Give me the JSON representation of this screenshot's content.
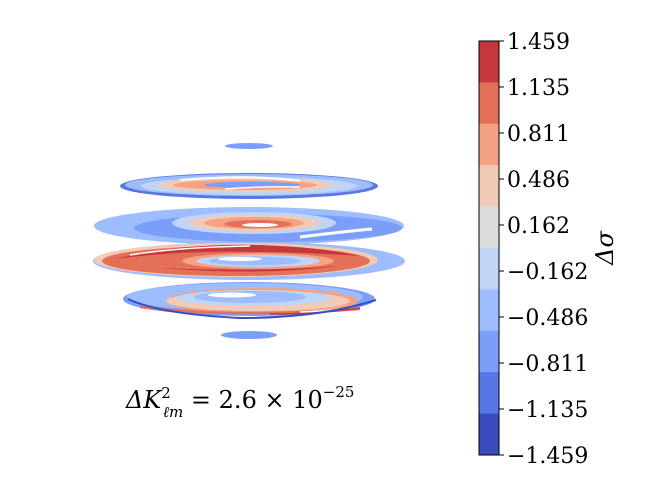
{
  "chart_data": {
    "type": "heatmap",
    "colorbar": {
      "label": "Δσ",
      "ticks": [
        "1.459",
        "1.135",
        "0.811",
        "0.486",
        "0.162",
        "−0.162",
        "−0.486",
        "−0.811",
        "−1.135",
        "−1.459"
      ],
      "range": [
        -1.459,
        1.459
      ],
      "levels": [
        {
          "range": [
            1.135,
            1.459
          ],
          "color": "#c4373a"
        },
        {
          "range": [
            0.811,
            1.135
          ],
          "color": "#e57058"
        },
        {
          "range": [
            0.486,
            0.811
          ],
          "color": "#f4a283"
        },
        {
          "range": [
            0.162,
            0.486
          ],
          "color": "#f2cbb7"
        },
        {
          "range": [
            -0.162,
            0.162
          ],
          "color": "#dddddd"
        },
        {
          "range": [
            -0.486,
            -0.162
          ],
          "color": "#c0d4f5"
        },
        {
          "range": [
            -0.811,
            -0.486
          ],
          "color": "#9dbdff"
        },
        {
          "range": [
            -1.135,
            -0.811
          ],
          "color": "#7b9ff9"
        },
        {
          "range": [
            -1.459,
            -1.135
          ],
          "color": "#5877e4"
        },
        {
          "range": [
            -1.459,
            -1.459
          ],
          "color": "#3b4cc0"
        }
      ]
    },
    "annotation": {
      "base": "ΔK",
      "sup": "2",
      "sub": "ℓm",
      "rest": " = 2.6 × 10",
      "exp": "−25"
    }
  }
}
